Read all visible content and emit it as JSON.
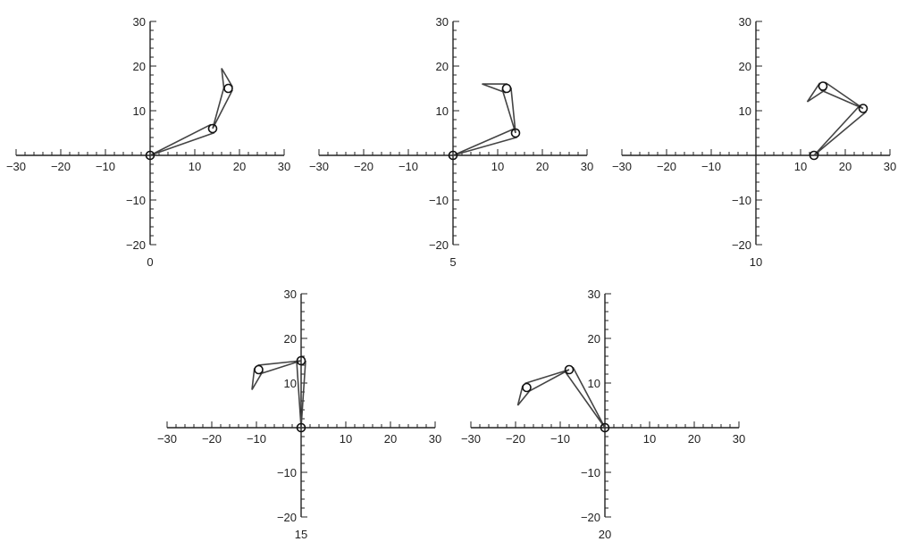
{
  "chart_data": [
    {
      "type": "diagram",
      "frame_label": "0",
      "x_ticks": [
        "−30",
        "−20",
        "−10",
        "10",
        "20",
        "30"
      ],
      "y_ticks": [
        "30",
        "20",
        "10",
        "−10",
        "−20"
      ],
      "xlim": [
        -30,
        30
      ],
      "ylim": [
        -20,
        30
      ],
      "joints": [
        [
          0,
          0
        ],
        [
          14,
          6
        ],
        [
          17.5,
          15
        ]
      ],
      "tip": [
        16,
        19.5
      ]
    },
    {
      "type": "diagram",
      "frame_label": "5",
      "x_ticks": [
        "−30",
        "−20",
        "−10",
        "10",
        "20",
        "30"
      ],
      "y_ticks": [
        "30",
        "20",
        "10",
        "−10",
        "−20"
      ],
      "xlim": [
        -30,
        30
      ],
      "ylim": [
        -20,
        30
      ],
      "joints": [
        [
          0,
          0
        ],
        [
          14,
          5
        ],
        [
          12,
          15
        ]
      ],
      "tip": [
        6.5,
        16
      ]
    },
    {
      "type": "diagram",
      "frame_label": "10",
      "x_ticks": [
        "−30",
        "−20",
        "−10",
        "10",
        "20",
        "30"
      ],
      "y_ticks": [
        "30",
        "20",
        "10",
        "−10",
        "−20"
      ],
      "xlim": [
        -30,
        30
      ],
      "ylim": [
        -20,
        30
      ],
      "joints": [
        [
          13,
          0
        ],
        [
          24,
          10.5
        ],
        [
          15,
          15.5
        ]
      ],
      "tip": [
        11.5,
        12
      ]
    },
    {
      "type": "diagram",
      "frame_label": "15",
      "x_ticks": [
        "−30",
        "−20",
        "−10",
        "10",
        "20",
        "30"
      ],
      "y_ticks": [
        "30",
        "20",
        "10",
        "−10",
        "−20"
      ],
      "xlim": [
        -30,
        30
      ],
      "ylim": [
        -20,
        30
      ],
      "joints": [
        [
          0,
          0
        ],
        [
          0,
          15
        ],
        [
          -9.5,
          13
        ]
      ],
      "tip": [
        -11,
        8.5
      ]
    },
    {
      "type": "diagram",
      "frame_label": "20",
      "x_ticks": [
        "−30",
        "−20",
        "−10",
        "10",
        "20",
        "30"
      ],
      "y_ticks": [
        "30",
        "20",
        "10",
        "−10",
        "−20"
      ],
      "xlim": [
        -30,
        30
      ],
      "ylim": [
        -20,
        30
      ],
      "joints": [
        [
          0,
          0
        ],
        [
          -8,
          13
        ],
        [
          -17.5,
          9
        ]
      ],
      "tip": [
        -19.5,
        5
      ]
    }
  ]
}
